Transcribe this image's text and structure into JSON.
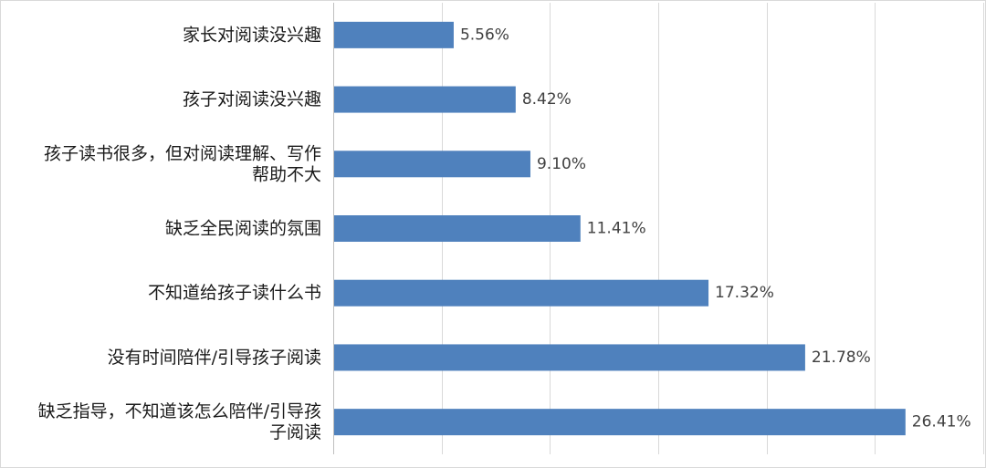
{
  "chart_data": {
    "type": "bar",
    "orientation": "horizontal",
    "categories": [
      [
        "家长对阅读没兴趣"
      ],
      [
        "孩子对阅读没兴趣"
      ],
      [
        "孩子读书很多，但对阅读理解、写作",
        "帮助不大"
      ],
      [
        "缺乏全民阅读的氛围"
      ],
      [
        "不知道给孩子读什么书"
      ],
      [
        "没有时间陪伴/引导孩子阅读"
      ],
      [
        "缺乏指导，不知道该怎么陪伴/引导孩",
        "子阅读"
      ]
    ],
    "values": [
      5.56,
      8.42,
      9.1,
      11.41,
      17.32,
      21.78,
      26.41
    ],
    "data_labels": [
      "5.56%",
      "8.42%",
      "9.10%",
      "11.41%",
      "17.32%",
      "21.78%",
      "26.41%"
    ],
    "xlim": [
      0,
      30
    ],
    "grid": "vertical",
    "legend": "none",
    "bar_color": "#4f81bd"
  }
}
